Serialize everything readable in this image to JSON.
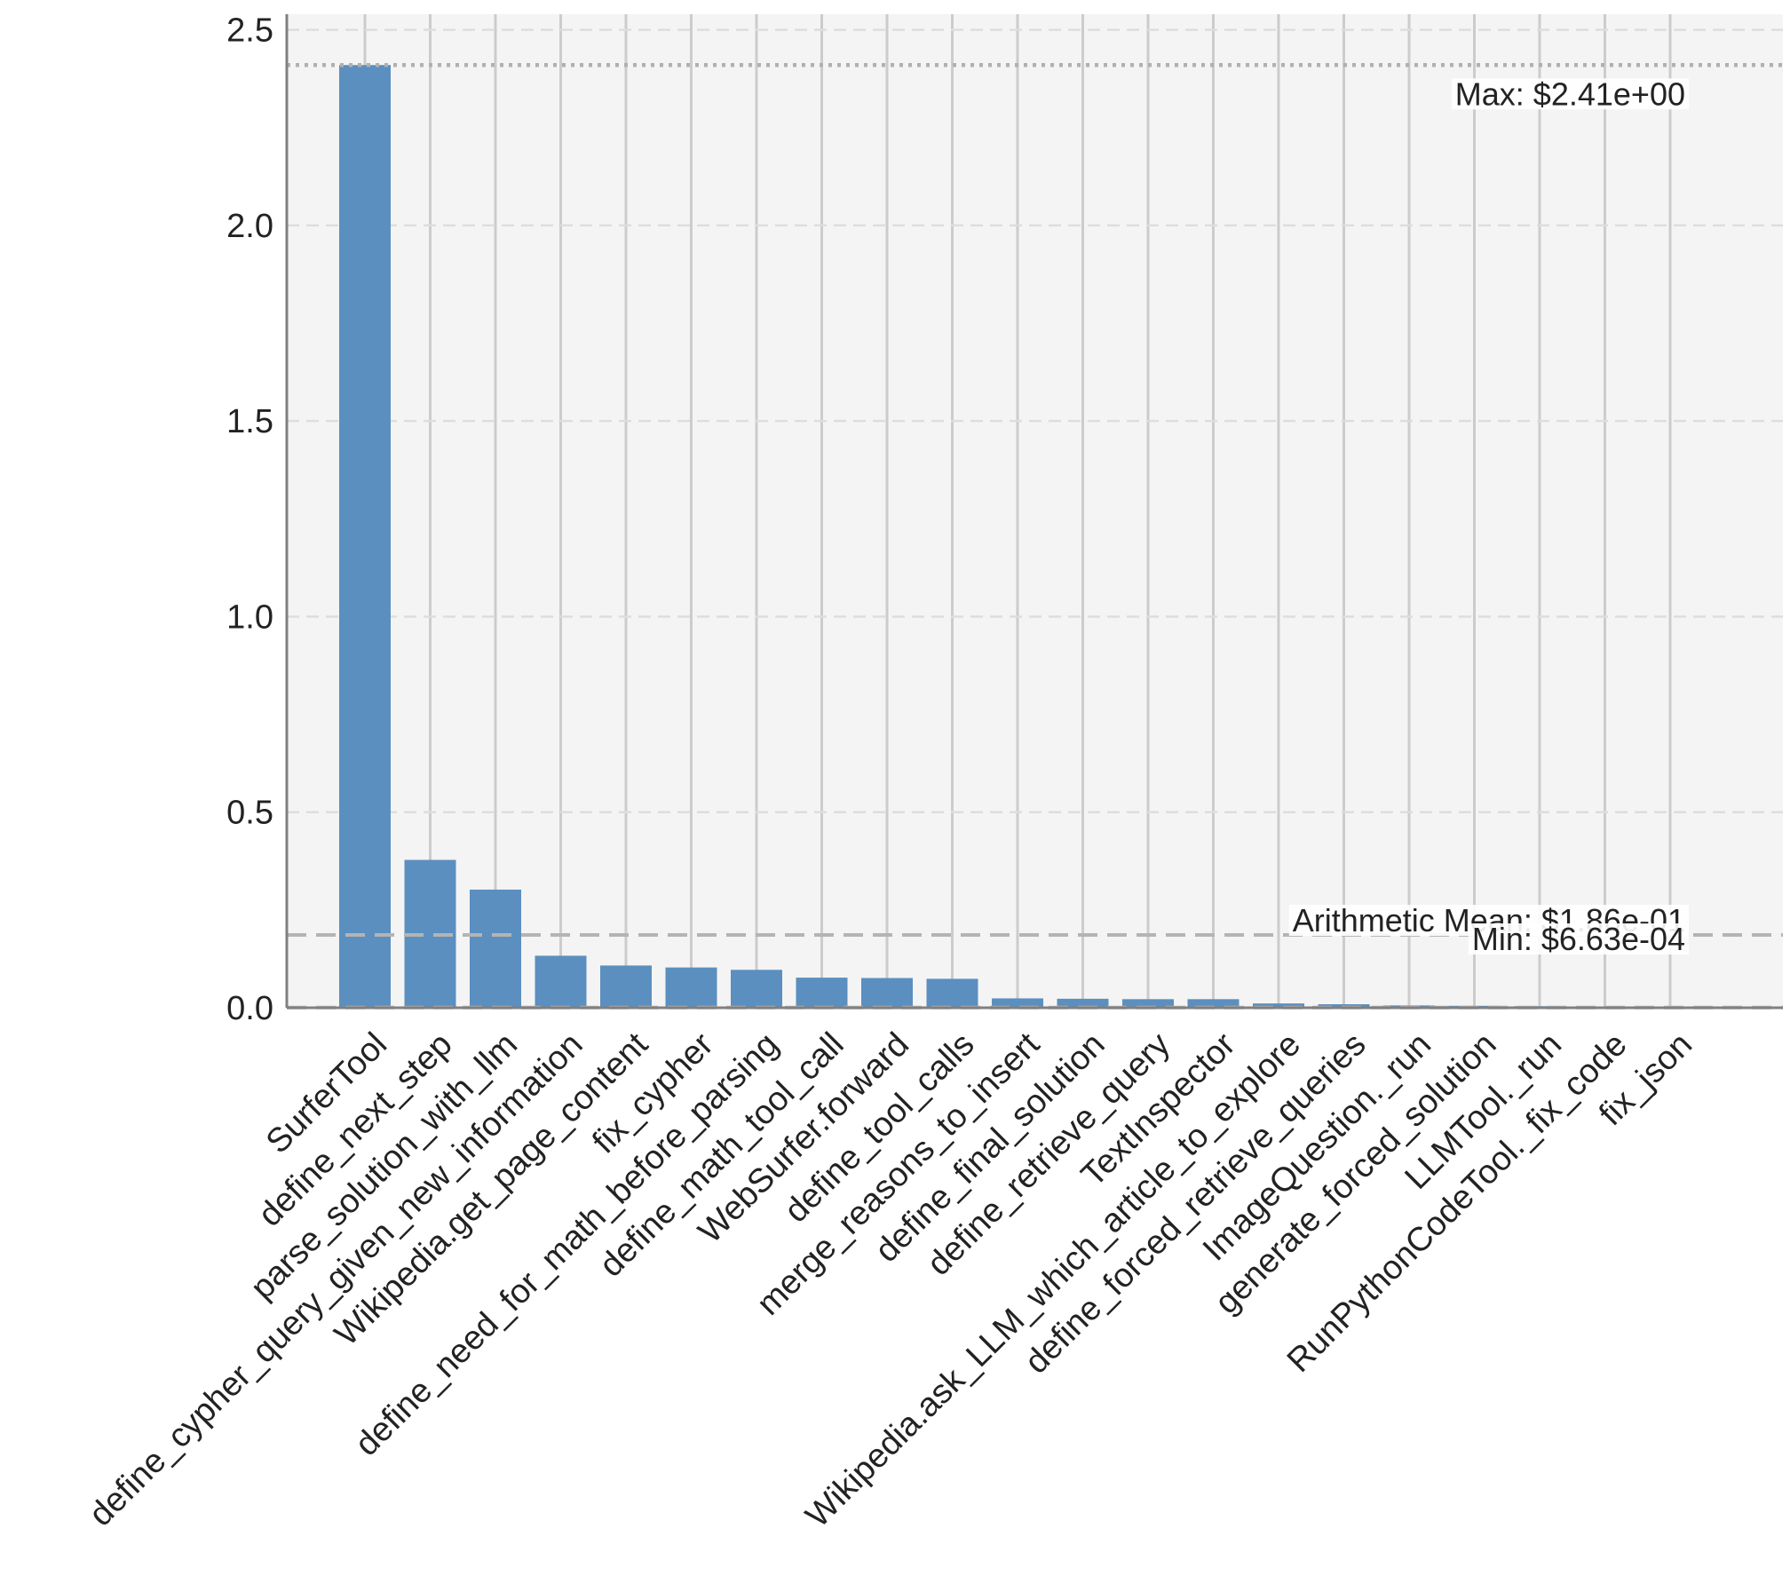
{
  "chart_data": {
    "type": "bar",
    "title": "",
    "xlabel": "",
    "ylabel": "",
    "ylim": [
      0,
      2.54
    ],
    "yticks": [
      "0.0",
      "0.5",
      "1.0",
      "1.5",
      "2.0",
      "2.5"
    ],
    "ytick_values": [
      0,
      0.5,
      1.0,
      1.5,
      2.0,
      2.5
    ],
    "grid": true,
    "bar_color": "#5b8fbf",
    "categories": [
      "SurferTool",
      "define_next_step",
      "parse_solution_with_llm",
      "define_cypher_query_given_new_information",
      "Wikipedia.get_page_content",
      "fix_cypher",
      "define_need_for_math_before_parsing",
      "define_math_tool_call",
      "WebSurfer.forward",
      "define_tool_calls",
      "merge_reasons_to_insert",
      "define_final_solution",
      "define_retrieve_query",
      "TextInspector",
      "Wikipedia.ask_LLM_which_article_to_explore",
      "define_forced_retrieve_queries",
      "ImageQuestion._run",
      "generate_forced_solution",
      "LLMTool._run",
      "RunPythonCodeTool._fix_code",
      "fix_json"
    ],
    "values": [
      2.41,
      0.378,
      0.302,
      0.133,
      0.108,
      0.103,
      0.097,
      0.077,
      0.076,
      0.074,
      0.024,
      0.023,
      0.022,
      0.022,
      0.011,
      0.009,
      0.006,
      0.005,
      0.004,
      0.001,
      0.000663
    ],
    "reference_lines": [
      {
        "name": "max",
        "value": 2.41,
        "label": "Max: $2.41e+00",
        "style": "dotted"
      },
      {
        "name": "mean",
        "value": 0.186,
        "label": "Arithmetic Mean: $1.86e-01",
        "style": "dashed"
      },
      {
        "name": "min",
        "value": 0.000663,
        "label": "Min: $6.63e-04",
        "style": "dashed"
      }
    ]
  }
}
